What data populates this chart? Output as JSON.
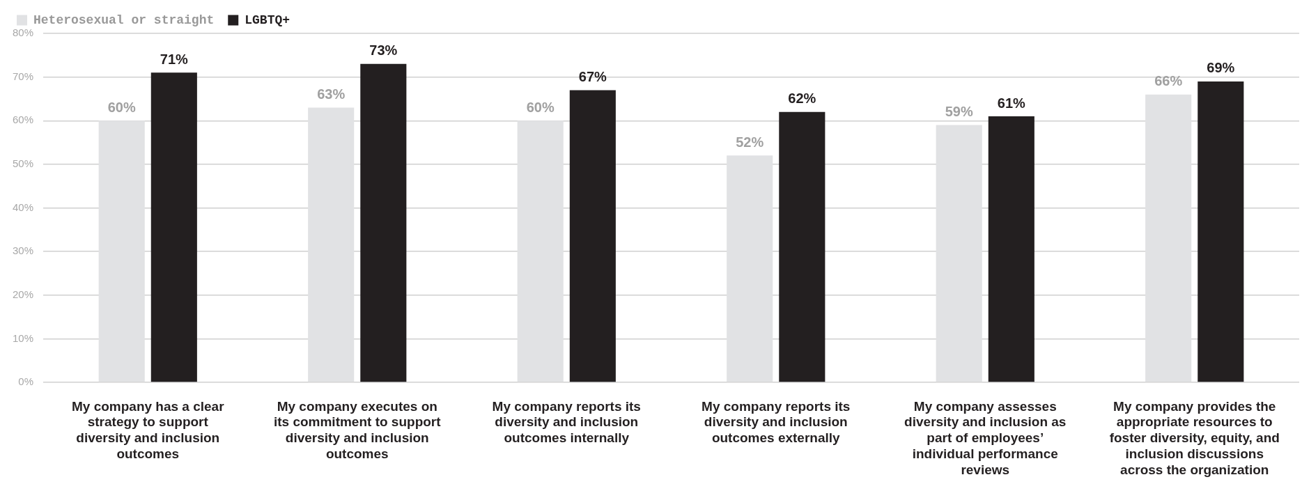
{
  "chart_data": {
    "type": "bar",
    "categories": [
      "My company has a clear strategy to support diversity and inclusion outcomes",
      "My company executes on its commitment to support diversity and inclusion outcomes",
      "My company reports its diversity and inclusion outcomes internally",
      "My company reports its diversity and inclusion outcomes externally",
      "My company assesses diversity and inclusion as part of employees’ individual performance reviews",
      "My company provides the appropriate resources to foster diversity, equity, and inclusion discussions across the organization"
    ],
    "series": [
      {
        "name": "Heterosexual or straight",
        "color": "#e1e2e4",
        "values": [
          60,
          63,
          60,
          52,
          59,
          66
        ],
        "value_labels": [
          "60%",
          "63%",
          "60%",
          "52%",
          "59%",
          "66%"
        ]
      },
      {
        "name": "LGBTQ+",
        "color": "#231f20",
        "values": [
          71,
          73,
          67,
          62,
          61,
          69
        ],
        "value_labels": [
          "71%",
          "73%",
          "67%",
          "62%",
          "61%",
          "69%"
        ]
      }
    ],
    "ylim": [
      0,
      80
    ],
    "yticks": [
      {
        "value": 0,
        "label": "0%"
      },
      {
        "value": 10,
        "label": "10%"
      },
      {
        "value": 20,
        "label": "20%"
      },
      {
        "value": 30,
        "label": "30%"
      },
      {
        "value": 40,
        "label": "40%"
      },
      {
        "value": 50,
        "label": "50%"
      },
      {
        "value": 60,
        "label": "60%"
      },
      {
        "value": 70,
        "label": "70%"
      },
      {
        "value": 80,
        "label": "80%"
      }
    ],
    "grid": "y",
    "legend": "top left"
  }
}
